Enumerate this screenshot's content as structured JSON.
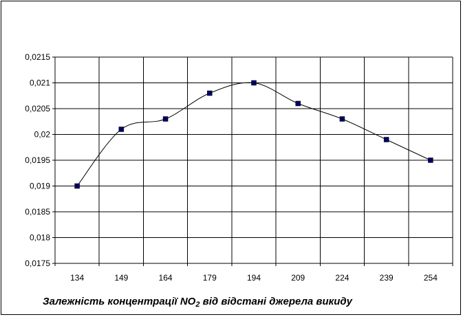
{
  "chart_data": {
    "type": "line",
    "title_parts": {
      "before": "Залежність концентрації NO",
      "subscript": "2",
      "after": " від відстані джерела викиду"
    },
    "categories": [
      "134",
      "149",
      "164",
      "179",
      "194",
      "209",
      "224",
      "239",
      "254"
    ],
    "x": [
      134,
      149,
      164,
      179,
      194,
      209,
      224,
      239,
      254
    ],
    "series": [
      {
        "values": [
          0.019,
          0.0201,
          0.0203,
          0.0208,
          0.021,
          0.0206,
          0.0203,
          0.0199,
          0.0195
        ]
      }
    ],
    "ylim": [
      0.0175,
      0.0215
    ],
    "y_ticks": [
      "0,0175",
      "0,018",
      "0,0185",
      "0,019",
      "0,0195",
      "0,02",
      "0,0205",
      "0,021",
      "0,0215"
    ],
    "grid": true,
    "legend": "none",
    "line_style": "smoothed",
    "marker": "square",
    "colors": {
      "line": "#000000",
      "marker": "#000066",
      "grid": "#000000"
    }
  }
}
